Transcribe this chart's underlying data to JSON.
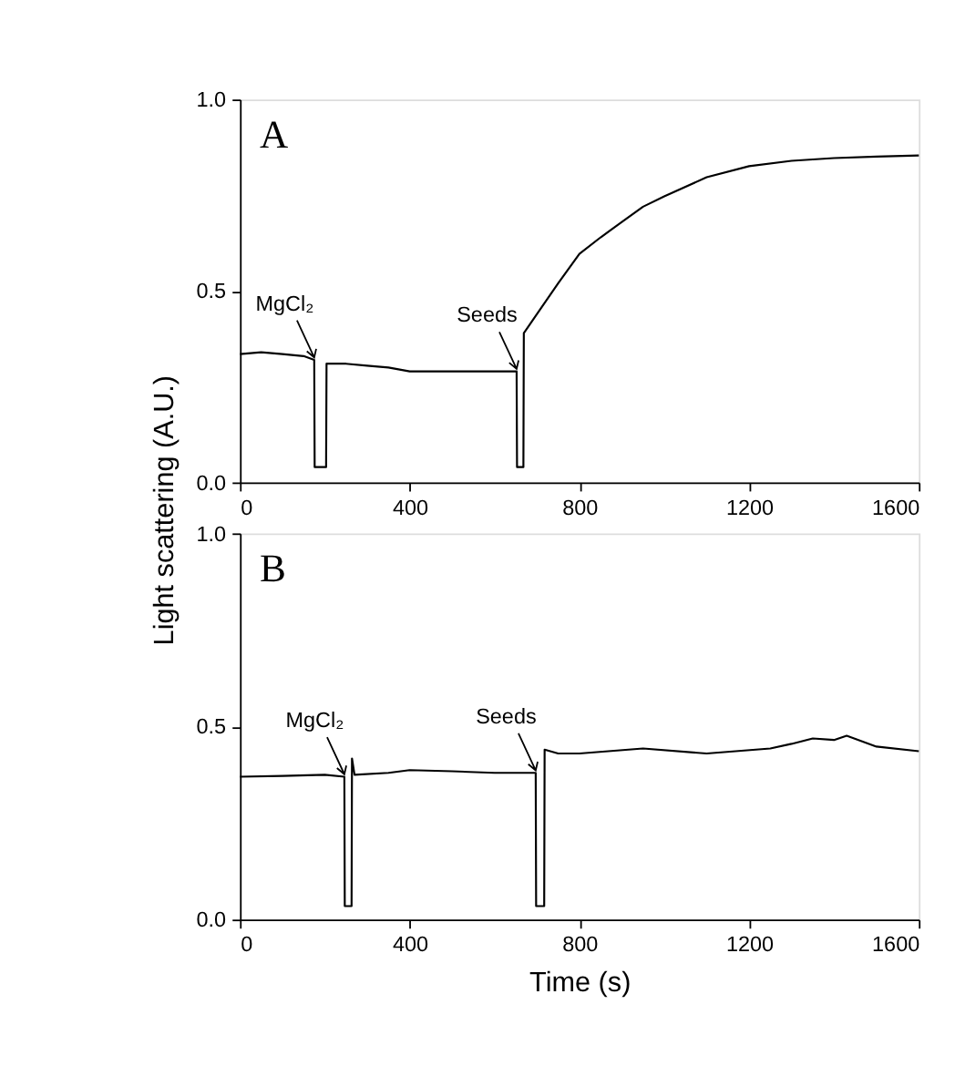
{
  "chart_data": [
    {
      "type": "line",
      "ylabel": "Light scattering (A.U.)",
      "xlim": [
        0,
        1600
      ],
      "xticks": [
        0,
        400,
        800,
        1200,
        1600
      ],
      "ylim": [
        0,
        1.0
      ],
      "yticks": [
        {
          "value": 0,
          "label": "0.0"
        },
        {
          "value": 0.5,
          "label": "0.5"
        },
        {
          "value": 1.0,
          "label": "1.0"
        }
      ],
      "grid": false,
      "marker": "none",
      "line_style": "solid",
      "annotations": [
        "A",
        {
          "text": "MgCl₂",
          "x": 175,
          "y": 0.32
        },
        {
          "text": "Seeds",
          "x": 652,
          "y": 0.29
        }
      ],
      "series": [
        {
          "color": "#000000",
          "x": [
            0,
            50,
            100,
            150,
            175,
            176,
            203,
            204,
            250,
            300,
            350,
            400,
            500,
            600,
            652,
            653,
            668,
            669,
            700,
            750,
            800,
            850,
            900,
            950,
            1000,
            1100,
            1200,
            1300,
            1400,
            1500,
            1600
          ],
          "values": [
            0.335,
            0.34,
            0.335,
            0.33,
            0.32,
            0.04,
            0.04,
            0.31,
            0.31,
            0.305,
            0.3,
            0.29,
            0.29,
            0.29,
            0.29,
            0.04,
            0.04,
            0.39,
            0.44,
            0.52,
            0.597,
            0.64,
            0.68,
            0.72,
            0.747,
            0.797,
            0.826,
            0.84,
            0.847,
            0.851,
            0.854
          ]
        }
      ]
    },
    {
      "type": "line",
      "xlabel": "Time (s)",
      "xlim": [
        0,
        1600
      ],
      "xticks": [
        0,
        400,
        800,
        1200,
        1600
      ],
      "ylim": [
        0,
        1.0
      ],
      "yticks": [
        {
          "value": 0,
          "label": "0.0"
        },
        {
          "value": 0.5,
          "label": "0.5"
        },
        {
          "value": 1.0,
          "label": "1.0"
        }
      ],
      "grid": false,
      "marker": "none",
      "line_style": "solid",
      "annotations": [
        "B",
        {
          "text": "MgCl₂",
          "x": 246,
          "y": 0.37
        },
        {
          "text": "Seeds",
          "x": 697,
          "y": 0.38
        }
      ],
      "series": [
        {
          "color": "#000000",
          "x": [
            0,
            100,
            200,
            246,
            247,
            263,
            264,
            270,
            350,
            400,
            500,
            600,
            697,
            698,
            717,
            718,
            750,
            800,
            950,
            1100,
            1250,
            1300,
            1350,
            1400,
            1430,
            1500,
            1600
          ],
          "values": [
            0.37,
            0.372,
            0.375,
            0.37,
            0.035,
            0.035,
            0.417,
            0.375,
            0.38,
            0.387,
            0.384,
            0.38,
            0.38,
            0.035,
            0.035,
            0.44,
            0.43,
            0.43,
            0.443,
            0.43,
            0.443,
            0.455,
            0.469,
            0.465,
            0.476,
            0.448,
            0.436
          ]
        }
      ]
    }
  ]
}
